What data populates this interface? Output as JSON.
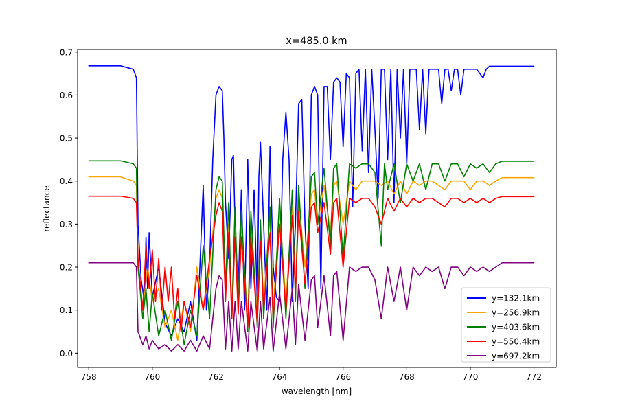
{
  "chart_data": {
    "type": "line",
    "title": "x=485.0 km",
    "xlabel": "wavelength [nm]",
    "ylabel": "reflectance",
    "xlim": [
      757.65,
      772.7
    ],
    "ylim": [
      -0.033,
      0.706
    ],
    "xticks": [
      758,
      760,
      762,
      764,
      766,
      768,
      770,
      772
    ],
    "yticks": [
      0.0,
      0.1,
      0.2,
      0.3,
      0.4,
      0.5,
      0.6,
      0.7
    ],
    "xtick_labels": [
      "758",
      "760",
      "762",
      "764",
      "766",
      "768",
      "770",
      "772"
    ],
    "ytick_labels": [
      "0.0",
      "0.1",
      "0.2",
      "0.3",
      "0.4",
      "0.5",
      "0.6",
      "0.7"
    ],
    "grid": false,
    "legend_position": "lower-right",
    "series": [
      {
        "name": "y=132.1km",
        "color": "#0000ff",
        "x": [
          758.0,
          759.0,
          759.4,
          759.5,
          759.55,
          759.65,
          759.75,
          759.8,
          759.85,
          759.9,
          760.0,
          760.2,
          760.4,
          760.6,
          760.8,
          761.0,
          761.2,
          761.4,
          761.6,
          761.7,
          761.8,
          761.9,
          762.0,
          762.1,
          762.2,
          762.25,
          762.3,
          762.4,
          762.5,
          762.55,
          762.6,
          762.7,
          762.8,
          762.9,
          763.0,
          763.1,
          763.2,
          763.3,
          763.35,
          763.4,
          763.5,
          763.6,
          763.65,
          763.7,
          763.8,
          763.9,
          764.0,
          764.1,
          764.2,
          764.3,
          764.4,
          764.5,
          764.6,
          764.7,
          764.8,
          764.9,
          765.0,
          765.1,
          765.2,
          765.3,
          765.4,
          765.5,
          765.6,
          765.7,
          765.8,
          765.9,
          766.0,
          766.1,
          766.2,
          766.3,
          766.4,
          766.5,
          766.6,
          766.7,
          766.8,
          766.9,
          767.0,
          767.1,
          767.2,
          767.3,
          767.4,
          767.5,
          767.6,
          767.7,
          767.8,
          767.9,
          768.0,
          768.1,
          768.2,
          768.3,
          768.4,
          768.5,
          768.6,
          768.7,
          768.8,
          768.9,
          769.0,
          769.1,
          769.2,
          769.3,
          769.4,
          769.5,
          769.6,
          769.7,
          769.8,
          769.9,
          770.0,
          770.2,
          770.4,
          770.5,
          770.6,
          770.8,
          771.0,
          771.2,
          771.4,
          771.6,
          771.8,
          772.0
        ],
        "y": [
          0.668,
          0.668,
          0.66,
          0.64,
          0.3,
          0.17,
          0.12,
          0.27,
          0.15,
          0.28,
          0.13,
          0.2,
          0.07,
          0.04,
          0.08,
          0.05,
          0.12,
          0.03,
          0.39,
          0.1,
          0.2,
          0.45,
          0.6,
          0.62,
          0.61,
          0.5,
          0.35,
          0.22,
          0.45,
          0.46,
          0.3,
          0.15,
          0.38,
          0.1,
          0.45,
          0.15,
          0.38,
          0.12,
          0.41,
          0.49,
          0.3,
          0.1,
          0.26,
          0.48,
          0.2,
          0.13,
          0.12,
          0.45,
          0.56,
          0.45,
          0.12,
          0.3,
          0.58,
          0.59,
          0.3,
          0.15,
          0.6,
          0.62,
          0.6,
          0.15,
          0.62,
          0.62,
          0.45,
          0.63,
          0.64,
          0.63,
          0.48,
          0.65,
          0.64,
          0.34,
          0.65,
          0.66,
          0.47,
          0.66,
          0.42,
          0.66,
          0.52,
          0.36,
          0.66,
          0.66,
          0.45,
          0.66,
          0.35,
          0.66,
          0.5,
          0.66,
          0.44,
          0.66,
          0.66,
          0.66,
          0.52,
          0.66,
          0.51,
          0.66,
          0.66,
          0.66,
          0.66,
          0.58,
          0.66,
          0.66,
          0.61,
          0.66,
          0.66,
          0.6,
          0.66,
          0.66,
          0.66,
          0.66,
          0.64,
          0.66,
          0.667,
          0.667,
          0.667,
          0.667,
          0.667,
          0.667,
          0.667,
          0.667
        ]
      },
      {
        "name": "y=256.9km",
        "color": "#ffa500",
        "x": [
          758.0,
          759.0,
          759.4,
          759.5,
          759.55,
          759.7,
          759.85,
          760.0,
          760.2,
          760.4,
          760.6,
          760.8,
          761.0,
          761.2,
          761.4,
          761.6,
          761.8,
          762.0,
          762.1,
          762.2,
          762.3,
          762.4,
          762.5,
          762.6,
          762.7,
          762.8,
          763.0,
          763.1,
          763.3,
          763.4,
          763.5,
          763.7,
          763.8,
          764.0,
          764.2,
          764.4,
          764.5,
          764.6,
          764.8,
          765.0,
          765.1,
          765.2,
          765.4,
          765.6,
          765.7,
          765.8,
          766.0,
          766.2,
          766.4,
          766.6,
          766.8,
          767.0,
          767.2,
          767.4,
          767.6,
          767.8,
          768.0,
          768.2,
          768.4,
          768.6,
          768.8,
          769.0,
          769.2,
          769.4,
          769.6,
          769.8,
          770.0,
          770.2,
          770.4,
          770.6,
          770.8,
          771.0,
          771.4,
          771.8,
          772.0
        ],
        "y": [
          0.41,
          0.41,
          0.4,
          0.39,
          0.2,
          0.1,
          0.2,
          0.12,
          0.15,
          0.06,
          0.1,
          0.03,
          0.12,
          0.05,
          0.2,
          0.1,
          0.2,
          0.36,
          0.38,
          0.36,
          0.15,
          0.3,
          0.1,
          0.32,
          0.12,
          0.3,
          0.08,
          0.3,
          0.09,
          0.29,
          0.12,
          0.32,
          0.1,
          0.33,
          0.12,
          0.34,
          0.15,
          0.36,
          0.2,
          0.37,
          0.38,
          0.3,
          0.39,
          0.28,
          0.39,
          0.4,
          0.3,
          0.4,
          0.38,
          0.4,
          0.4,
          0.4,
          0.39,
          0.4,
          0.37,
          0.4,
          0.37,
          0.4,
          0.39,
          0.4,
          0.4,
          0.39,
          0.38,
          0.4,
          0.4,
          0.4,
          0.38,
          0.4,
          0.4,
          0.39,
          0.4,
          0.408,
          0.408,
          0.408,
          0.408
        ]
      },
      {
        "name": "y=403.6km",
        "color": "#008000",
        "x": [
          758.0,
          759.0,
          759.4,
          759.5,
          759.55,
          759.7,
          759.8,
          759.9,
          760.0,
          760.2,
          760.4,
          760.6,
          760.8,
          761.0,
          761.2,
          761.4,
          761.6,
          761.8,
          762.0,
          762.1,
          762.2,
          762.3,
          762.4,
          762.5,
          762.6,
          762.7,
          762.8,
          763.0,
          763.1,
          763.3,
          763.4,
          763.5,
          763.7,
          763.8,
          764.0,
          764.2,
          764.4,
          764.5,
          764.6,
          764.8,
          765.0,
          765.1,
          765.2,
          765.4,
          765.6,
          765.7,
          765.8,
          766.0,
          766.2,
          766.4,
          766.6,
          766.8,
          767.0,
          767.2,
          767.3,
          767.4,
          767.6,
          767.8,
          768.0,
          768.2,
          768.4,
          768.6,
          768.8,
          769.0,
          769.2,
          769.4,
          769.6,
          769.8,
          770.0,
          770.2,
          770.4,
          770.6,
          770.8,
          771.0,
          771.4,
          771.8,
          772.0
        ],
        "y": [
          0.447,
          0.447,
          0.44,
          0.43,
          0.2,
          0.08,
          0.15,
          0.05,
          0.14,
          0.04,
          0.1,
          0.03,
          0.12,
          0.02,
          0.1,
          0.04,
          0.25,
          0.08,
          0.38,
          0.41,
          0.4,
          0.15,
          0.35,
          0.08,
          0.34,
          0.1,
          0.33,
          0.05,
          0.33,
          0.06,
          0.31,
          0.08,
          0.34,
          0.06,
          0.36,
          0.08,
          0.38,
          0.12,
          0.39,
          0.15,
          0.41,
          0.42,
          0.3,
          0.43,
          0.25,
          0.43,
          0.44,
          0.22,
          0.44,
          0.43,
          0.44,
          0.44,
          0.42,
          0.25,
          0.44,
          0.38,
          0.44,
          0.35,
          0.44,
          0.4,
          0.44,
          0.38,
          0.44,
          0.44,
          0.4,
          0.44,
          0.44,
          0.41,
          0.44,
          0.43,
          0.44,
          0.42,
          0.44,
          0.446,
          0.446,
          0.446,
          0.446
        ]
      },
      {
        "name": "y=550.4km",
        "color": "#ff0000",
        "x": [
          758.0,
          759.0,
          759.4,
          759.5,
          759.55,
          759.7,
          759.8,
          759.9,
          760.0,
          760.1,
          760.2,
          760.3,
          760.4,
          760.5,
          760.6,
          760.7,
          760.8,
          760.9,
          761.0,
          761.2,
          761.4,
          761.6,
          761.8,
          762.0,
          762.1,
          762.2,
          762.3,
          762.4,
          762.5,
          762.6,
          762.7,
          762.8,
          763.0,
          763.1,
          763.3,
          763.4,
          763.5,
          763.7,
          763.8,
          764.0,
          764.2,
          764.4,
          764.5,
          764.6,
          764.8,
          765.0,
          765.1,
          765.2,
          765.4,
          765.6,
          765.7,
          765.8,
          766.0,
          766.2,
          766.4,
          766.6,
          766.8,
          767.0,
          767.2,
          767.4,
          767.6,
          767.8,
          768.0,
          768.2,
          768.4,
          768.6,
          768.8,
          769.0,
          769.2,
          769.4,
          769.6,
          769.8,
          770.0,
          770.2,
          770.4,
          770.6,
          770.8,
          771.0,
          771.4,
          771.8,
          772.0
        ],
        "y": [
          0.365,
          0.365,
          0.36,
          0.35,
          0.22,
          0.1,
          0.25,
          0.15,
          0.24,
          0.12,
          0.22,
          0.1,
          0.2,
          0.12,
          0.2,
          0.08,
          0.15,
          0.05,
          0.12,
          0.06,
          0.18,
          0.1,
          0.22,
          0.32,
          0.35,
          0.33,
          0.12,
          0.28,
          0.08,
          0.27,
          0.09,
          0.27,
          0.06,
          0.27,
          0.07,
          0.26,
          0.1,
          0.28,
          0.08,
          0.3,
          0.1,
          0.32,
          0.14,
          0.33,
          0.16,
          0.34,
          0.35,
          0.28,
          0.35,
          0.23,
          0.35,
          0.36,
          0.2,
          0.36,
          0.35,
          0.36,
          0.36,
          0.34,
          0.3,
          0.36,
          0.33,
          0.36,
          0.34,
          0.36,
          0.35,
          0.36,
          0.36,
          0.35,
          0.34,
          0.36,
          0.36,
          0.35,
          0.36,
          0.35,
          0.36,
          0.35,
          0.36,
          0.364,
          0.364,
          0.364,
          0.364
        ]
      },
      {
        "name": "y=697.2km",
        "color": "#800080",
        "x": [
          758.0,
          759.0,
          759.4,
          759.5,
          759.55,
          759.7,
          759.8,
          759.9,
          760.0,
          760.2,
          760.4,
          760.6,
          760.8,
          761.0,
          761.2,
          761.4,
          761.6,
          761.8,
          762.0,
          762.1,
          762.2,
          762.3,
          762.4,
          762.5,
          762.6,
          762.7,
          762.8,
          763.0,
          763.1,
          763.3,
          763.4,
          763.5,
          763.7,
          763.8,
          764.0,
          764.2,
          764.4,
          764.5,
          764.6,
          764.8,
          765.0,
          765.1,
          765.2,
          765.4,
          765.6,
          765.7,
          765.8,
          766.0,
          766.2,
          766.4,
          766.6,
          766.8,
          767.0,
          767.2,
          767.4,
          767.6,
          767.8,
          768.0,
          768.2,
          768.4,
          768.6,
          768.8,
          769.0,
          769.2,
          769.4,
          769.6,
          769.8,
          770.0,
          770.2,
          770.4,
          770.6,
          770.8,
          771.0,
          771.4,
          771.8,
          772.0
        ],
        "y": [
          0.21,
          0.21,
          0.21,
          0.2,
          0.05,
          0.02,
          0.04,
          0.01,
          0.03,
          0.01,
          0.02,
          0.005,
          0.02,
          0.005,
          0.03,
          0.005,
          0.04,
          0.01,
          0.15,
          0.18,
          0.17,
          0.01,
          0.12,
          0.005,
          0.12,
          0.01,
          0.12,
          0.005,
          0.12,
          0.005,
          0.12,
          0.01,
          0.13,
          0.005,
          0.14,
          0.01,
          0.15,
          0.02,
          0.16,
          0.03,
          0.17,
          0.18,
          0.06,
          0.18,
          0.04,
          0.18,
          0.19,
          0.03,
          0.2,
          0.19,
          0.2,
          0.2,
          0.17,
          0.08,
          0.2,
          0.12,
          0.2,
          0.1,
          0.2,
          0.18,
          0.2,
          0.19,
          0.2,
          0.15,
          0.2,
          0.2,
          0.18,
          0.2,
          0.19,
          0.2,
          0.19,
          0.2,
          0.21,
          0.21,
          0.21,
          0.21
        ]
      }
    ]
  }
}
